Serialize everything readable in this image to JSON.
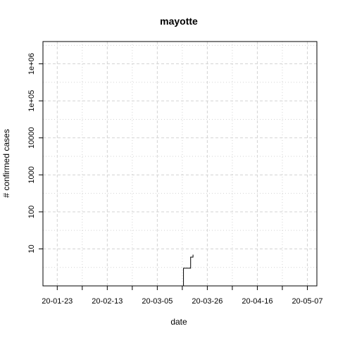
{
  "chart_data": {
    "type": "line",
    "title": "mayotte",
    "xlabel": "date",
    "ylabel": "# confirmed cases",
    "x_ticks": [
      "2020-01-23",
      "2020-02-13",
      "2020-03-05",
      "2020-03-26",
      "2020-04-16",
      "2020-05-07"
    ],
    "x_tick_labels": [
      "20-01-23",
      "20-02-13",
      "20-03-05",
      "20-03-26",
      "20-04-16",
      "20-05-07"
    ],
    "y_scale": "log",
    "y_ticks": [
      10,
      100,
      1000,
      10000,
      100000,
      1000000
    ],
    "y_tick_labels": [
      "10",
      "100",
      "1000",
      "10000",
      "1e+05",
      "1e+06"
    ],
    "xlim": [
      "2020-01-17",
      "2020-05-11"
    ],
    "ylim": [
      1,
      4000000
    ],
    "grid": true,
    "series": [
      {
        "x": [
          "2020-03-14",
          "2020-03-15",
          "2020-03-16",
          "2020-03-17",
          "2020-03-18",
          "2020-03-19",
          "2020-03-20"
        ],
        "values": [
          1,
          1,
          3,
          3,
          3,
          6,
          7
        ]
      }
    ]
  }
}
